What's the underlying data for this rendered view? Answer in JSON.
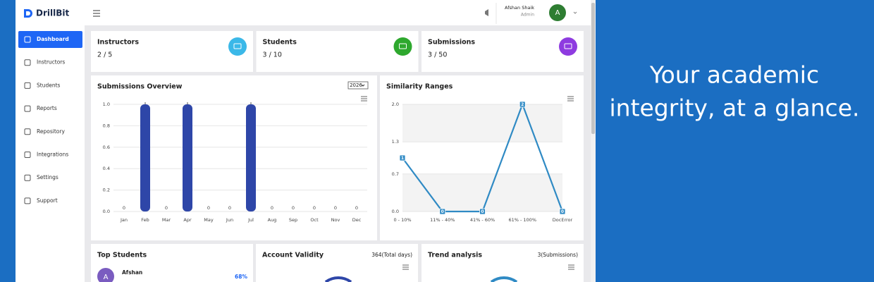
{
  "brand": "DrillBit",
  "nav": [
    "Dashboard",
    "Instructors",
    "Students",
    "Reports",
    "Repository",
    "Integrations",
    "Settings",
    "Support"
  ],
  "user": {
    "name": "Afshan Shaik",
    "role": "Admin",
    "initial": "A"
  },
  "stats": [
    {
      "title": "Instructors",
      "value": "2 / 5"
    },
    {
      "title": "Students",
      "value": "3 / 10"
    },
    {
      "title": "Submissions",
      "value": "3 / 50"
    }
  ],
  "chart_data": [
    {
      "type": "bar",
      "title": "Submissions Overview",
      "selected_year": "2026",
      "color": "#2e46a8",
      "categories": [
        "Jan",
        "Feb",
        "Mar",
        "Apr",
        "May",
        "Jun",
        "Jul",
        "Aug",
        "Sep",
        "Oct",
        "Nov",
        "Dec"
      ],
      "values": [
        0,
        1,
        0,
        1,
        0,
        0,
        1,
        0,
        0,
        0,
        0,
        0
      ],
      "ylim": [
        0,
        1
      ],
      "yticks": [
        {
          "value": 0,
          "label": "0.0"
        },
        {
          "value": 0.2,
          "label": "0.2"
        },
        {
          "value": 0.4,
          "label": "0.4"
        },
        {
          "value": 0.6,
          "label": "0.6"
        },
        {
          "value": 0.8,
          "label": "0.8"
        },
        {
          "value": 1,
          "label": "1.0"
        }
      ],
      "grid": true
    },
    {
      "type": "line",
      "title": "Similarity Ranges",
      "color": "#2f8ac4",
      "categories": [
        "0 - 10%",
        "11% - 40%",
        "41% - 60%",
        "61% - 100%",
        "DocError"
      ],
      "values": [
        1,
        0,
        0,
        2,
        0
      ],
      "ylim": [
        0,
        2
      ],
      "yticks": [
        {
          "value": 0,
          "label": "0.0"
        },
        {
          "value": 0.7,
          "label": "0.7"
        },
        {
          "value": 1.3,
          "label": "1.3"
        },
        {
          "value": 2,
          "label": "2.0"
        }
      ],
      "grid": true
    }
  ],
  "top_students": {
    "title": "Top Students",
    "student": {
      "initial": "A",
      "name": "Afshan",
      "score": "68%"
    }
  },
  "account_validity": {
    "title": "Account Validity",
    "note": "364(Total days)"
  },
  "trend_analysis": {
    "title": "Trend analysis",
    "note": "3(Submissions)"
  },
  "tagline": [
    "Your academic",
    "integrity, at a glance."
  ]
}
